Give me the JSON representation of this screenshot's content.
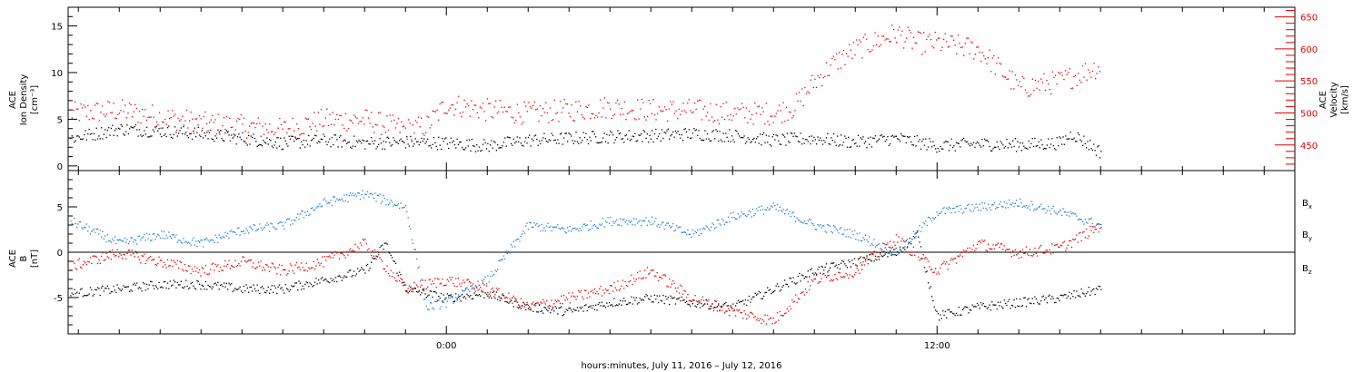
{
  "colors": {
    "density": "#000000",
    "velocity": "#e00000",
    "bx": "#000000",
    "by": "#1a7fd0",
    "bz": "#e00000",
    "axis": "#000000"
  },
  "xaxis": {
    "title": "hours:minutes, July 11, 2016 – July 12, 2016",
    "range": [
      -9.25,
      20.75
    ],
    "tick_labels": [
      {
        "x": 0,
        "label": "0:00"
      },
      {
        "x": 12,
        "label": "12:00"
      }
    ]
  },
  "chart_data": [
    {
      "type": "scatter",
      "panel": "plasma",
      "left_axis": {
        "label_lines": [
          "ACE",
          "Ion Density",
          "[cm⁻³]"
        ],
        "range": [
          -0.5,
          17
        ],
        "ticks": [
          0,
          5,
          10,
          15
        ]
      },
      "right_axis": {
        "label_lines": [
          "ACE",
          "Velocity",
          "[km/s]"
        ],
        "range": [
          410,
          665
        ],
        "ticks": [
          450,
          500,
          550,
          600,
          650
        ]
      },
      "series": [
        {
          "key": "density",
          "axis": "left",
          "x": [
            -9.2,
            -8.0,
            -7.0,
            -6.0,
            -5.0,
            -4.0,
            -3.0,
            -2.0,
            -1.0,
            0.0,
            1.0,
            2.0,
            3.0,
            4.0,
            5.0,
            6.0,
            7.0,
            8.0,
            9.0,
            10.0,
            11.0,
            12.0,
            13.0,
            14.0,
            15.0,
            15.3,
            16.0
          ],
          "y": [
            3.0,
            4.0,
            3.8,
            3.5,
            3.0,
            2.5,
            2.8,
            2.5,
            2.6,
            2.5,
            2.2,
            2.8,
            3.0,
            3.2,
            3.3,
            3.5,
            3.3,
            2.8,
            3.0,
            2.6,
            3.0,
            2.2,
            2.4,
            2.3,
            2.5,
            3.5,
            1.5
          ]
        },
        {
          "key": "velocity",
          "axis": "right",
          "x": [
            -9.2,
            -8.0,
            -7.0,
            -6.0,
            -5.0,
            -4.0,
            -3.0,
            -2.0,
            -1.0,
            -0.5,
            0.0,
            1.0,
            2.0,
            3.0,
            4.0,
            5.0,
            6.0,
            7.0,
            8.0,
            8.5,
            9.0,
            9.5,
            10.0,
            11.0,
            11.5,
            12.0,
            13.0,
            14.0,
            15.0,
            16.0
          ],
          "y": [
            500,
            505,
            495,
            485,
            480,
            475,
            490,
            490,
            475,
            480,
            515,
            505,
            500,
            505,
            510,
            505,
            505,
            500,
            500,
            510,
            550,
            580,
            600,
            625,
            610,
            610,
            600,
            540,
            550,
            575
          ]
        }
      ]
    },
    {
      "type": "scatter",
      "panel": "magnetic-field",
      "left_axis": {
        "label_lines": [
          "ACE",
          "B",
          "[nT]"
        ],
        "range": [
          -9,
          9
        ],
        "ticks": [
          -5,
          0,
          5
        ]
      },
      "zero_line": 0,
      "series": [
        {
          "key": "bx",
          "legend": "B",
          "legend_sub": "x",
          "x": [
            -9.2,
            -8.0,
            -7.0,
            -6.0,
            -5.0,
            -4.0,
            -3.0,
            -2.0,
            -1.5,
            -1.0,
            0.0,
            1.0,
            2.0,
            3.0,
            4.0,
            5.0,
            6.0,
            7.0,
            8.0,
            9.0,
            10.0,
            11.0,
            11.5,
            12.0,
            13.0,
            14.0,
            15.0,
            16.0
          ],
          "y": [
            -4.5,
            -4.0,
            -3.5,
            -3.5,
            -4.0,
            -4.0,
            -3.0,
            -2.0,
            1.0,
            -4.0,
            -5.0,
            -4.5,
            -6.0,
            -6.5,
            -5.5,
            -5.0,
            -5.5,
            -6.0,
            -4.0,
            -2.0,
            -1.0,
            0.0,
            2.0,
            -7.0,
            -6.0,
            -5.5,
            -5.0,
            -4.0
          ]
        },
        {
          "key": "by",
          "legend": "B",
          "legend_sub": "y",
          "x": [
            -9.2,
            -8.0,
            -7.0,
            -6.0,
            -5.0,
            -4.0,
            -3.0,
            -2.0,
            -1.0,
            -0.5,
            0.0,
            1.0,
            2.0,
            3.0,
            4.0,
            5.0,
            6.0,
            7.0,
            8.0,
            9.0,
            10.0,
            11.0,
            12.0,
            13.0,
            14.0,
            15.0,
            16.0
          ],
          "y": [
            3.5,
            1.0,
            2.0,
            1.0,
            2.5,
            3.0,
            5.5,
            6.5,
            5.0,
            -6.0,
            -5.5,
            -3.0,
            3.0,
            2.5,
            3.5,
            3.5,
            2.0,
            4.0,
            5.0,
            3.0,
            2.0,
            0.0,
            4.5,
            5.0,
            5.5,
            4.5,
            3.0
          ]
        },
        {
          "key": "bz",
          "legend": "B",
          "legend_sub": "z",
          "x": [
            -9.2,
            -8.0,
            -7.0,
            -6.0,
            -5.0,
            -4.0,
            -3.0,
            -2.0,
            -1.0,
            0.0,
            1.0,
            2.0,
            3.0,
            4.0,
            5.0,
            6.0,
            7.0,
            8.0,
            9.0,
            10.0,
            11.0,
            12.0,
            13.0,
            14.0,
            15.0,
            16.0
          ],
          "y": [
            -1.5,
            0.0,
            -1.0,
            -2.0,
            -1.0,
            -2.0,
            -1.0,
            1.0,
            -4.0,
            -3.0,
            -4.0,
            -6.0,
            -5.0,
            -4.0,
            -2.0,
            -5.0,
            -6.5,
            -7.5,
            -3.0,
            -2.0,
            1.5,
            -2.0,
            1.0,
            0.0,
            0.5,
            3.0
          ]
        }
      ]
    }
  ]
}
